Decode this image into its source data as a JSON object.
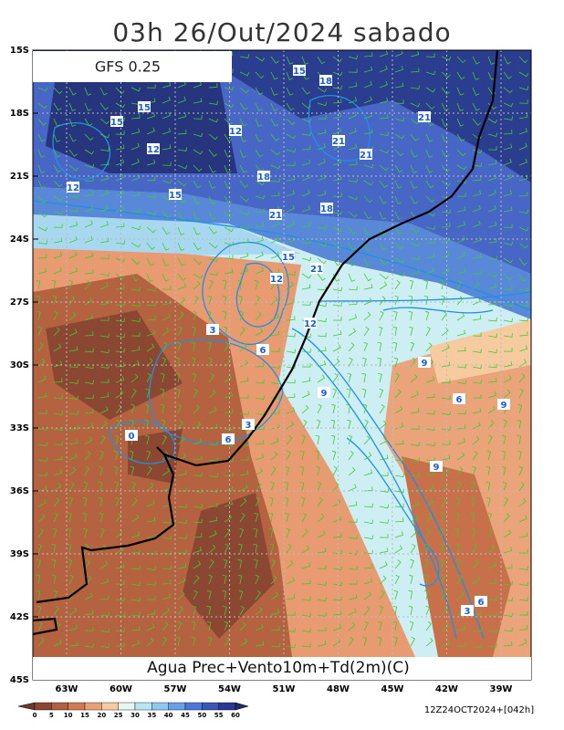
{
  "title": "03h 26/Out/2024 sabado",
  "model": "GFS 0.25",
  "caption": "Agua Prec+Vento10m+Td(2m)(C)",
  "lat_labels": [
    "15S",
    "18S",
    "21S",
    "24S",
    "27S",
    "30S",
    "33S",
    "36S",
    "39S",
    "42S",
    "45S"
  ],
  "lon_labels": [
    "63W",
    "60W",
    "57W",
    "54W",
    "51W",
    "48W",
    "45W",
    "42W",
    "39W"
  ],
  "colorbar_labels": [
    0,
    5,
    10,
    15,
    20,
    25,
    30,
    35,
    40,
    45,
    50,
    55,
    60
  ],
  "timestamp": "12Z24OCT2024+[042h]",
  "contour_labels": [
    "15",
    "18",
    "18",
    "21",
    "15",
    "15",
    "12",
    "12",
    "21",
    "21",
    "18",
    "15",
    "12",
    "21",
    "15",
    "12",
    "21",
    "12",
    "9",
    "6",
    "3",
    "6",
    "9",
    "9",
    "6",
    "9",
    "3",
    "6",
    "0",
    "3"
  ]
}
